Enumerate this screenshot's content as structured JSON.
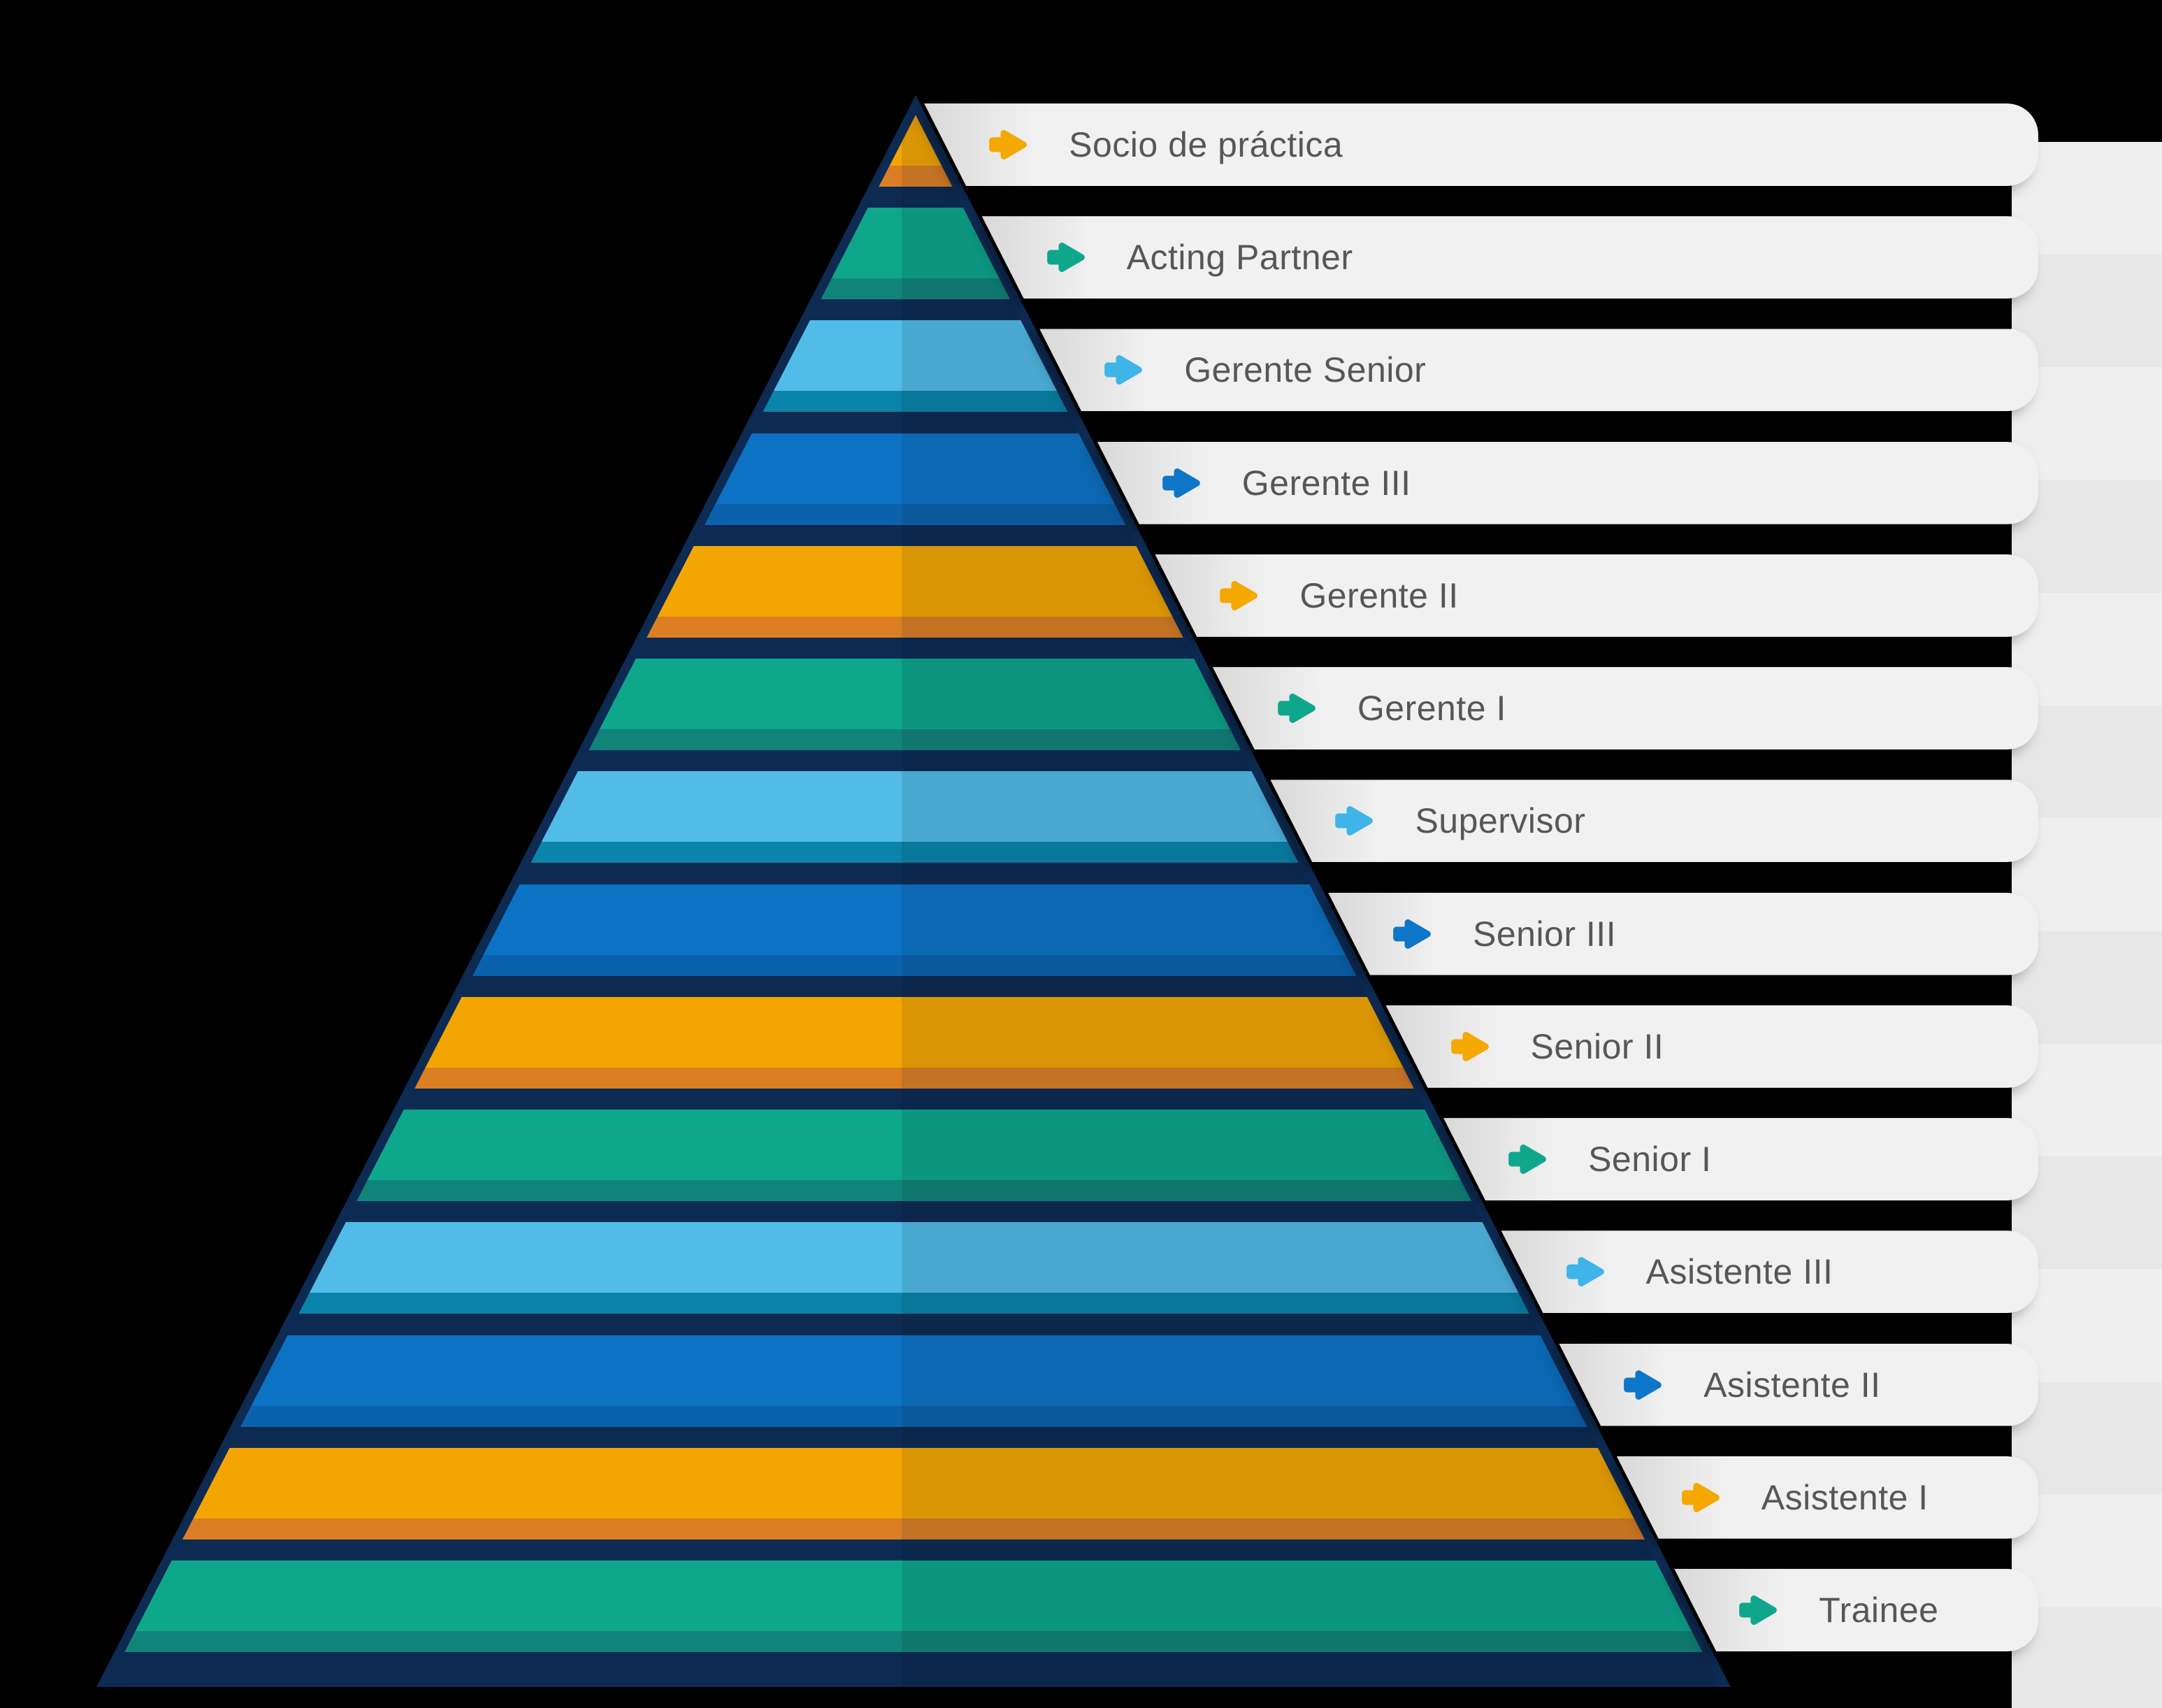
{
  "levels": [
    {
      "label": "Socio de práctica",
      "color": "orange"
    },
    {
      "label": "Acting Partner",
      "color": "teal"
    },
    {
      "label": "Gerente Senior",
      "color": "lightblue"
    },
    {
      "label": "Gerente III",
      "color": "blue"
    },
    {
      "label": "Gerente II",
      "color": "orange"
    },
    {
      "label": "Gerente I",
      "color": "teal"
    },
    {
      "label": "Supervisor",
      "color": "lightblue"
    },
    {
      "label": "Senior III",
      "color": "blue"
    },
    {
      "label": "Senior II",
      "color": "orange"
    },
    {
      "label": "Senior I",
      "color": "teal"
    },
    {
      "label": "Asistente III",
      "color": "lightblue"
    },
    {
      "label": "Asistente II",
      "color": "blue"
    },
    {
      "label": "Asistente I",
      "color": "orange"
    },
    {
      "label": "Trainee",
      "color": "teal"
    }
  ],
  "palette": {
    "orange": {
      "band": "#F3A602",
      "lip": "#DB7E24",
      "arrow": "#F5A800"
    },
    "teal": {
      "band": "#0EA78C",
      "lip": "#11847A",
      "arrow": "#0FA78C"
    },
    "lightblue": {
      "band": "#51BCE8",
      "lip": "#0A84AA",
      "arrow": "#3FB4E8"
    },
    "blue": {
      "band": "#0C72C4",
      "lip": "#0B62AC",
      "arrow": "#0E76C8"
    },
    "navy": "#0D2A52",
    "glow_blue": "#2228F0",
    "glow_teal": "#156A66",
    "bar_bg": "#F1F1F1",
    "bar_edge_shade": "#D9D9D9",
    "ext_light": "#EFEFEF",
    "ext_dark": "#E7E7E7",
    "label_text": "#575757",
    "background": "#000000"
  }
}
